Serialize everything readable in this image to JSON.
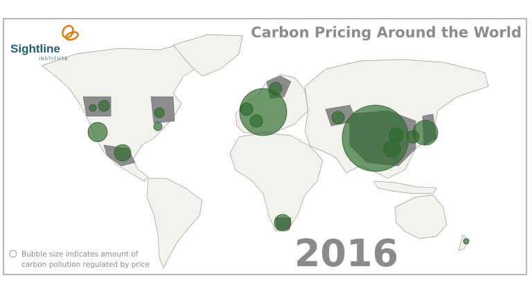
{
  "logo": {
    "name": "Sightline",
    "subtitle": "INSTITUTE"
  },
  "title": "Carbon Pricing Around the World",
  "legend": {
    "line1": "Bubble size indicates amount of",
    "line2": "carbon pollution regulated by price"
  },
  "year": "2016"
}
